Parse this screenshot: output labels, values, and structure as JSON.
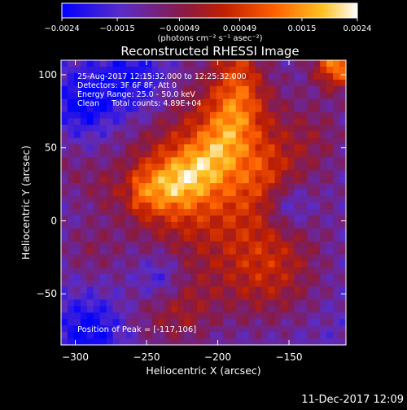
{
  "chart_data": {
    "type": "heatmap",
    "title": "Reconstructed RHESSI Image",
    "xlabel": "Heliocentric X (arcsec)",
    "ylabel": "Heliocentric Y (arcsec)",
    "xlim": [
      -310,
      -110
    ],
    "ylim": [
      -85,
      110
    ],
    "x_ticks": [
      -300,
      -250,
      -200,
      -150
    ],
    "x_tick_labels": [
      "−300",
      "−250",
      "−200",
      "−150"
    ],
    "y_ticks": [
      -50,
      0,
      50,
      100
    ],
    "y_tick_labels": [
      "−50",
      "0",
      "50",
      "100"
    ],
    "colorbar": {
      "range": [
        -0.0024,
        0.0024
      ],
      "ticks": [
        -0.0024,
        -0.0015,
        -0.00049,
        0.00049,
        0.0015,
        0.0024
      ],
      "tick_labels": [
        "−0.0024",
        "−0.0015",
        "−0.00049",
        "0.00049",
        "0.0015",
        "0.0024"
      ],
      "unit_label": "(photons cm⁻² s⁻¹ asec⁻²)",
      "colors": [
        "#0000ff",
        "#6020c0",
        "#a01818",
        "#e03000",
        "#ff8000",
        "#ffd040",
        "#ffffff"
      ]
    },
    "annotations": {
      "time": "25-Aug-2017 12:15:32.000 to 12:25:32.000",
      "detectors": "Detectors: 3F 6F 8F, Att 0",
      "energy": "Energy Range: 25.0 - 50.0 keV",
      "method": "Clean     Total counts: 4.89E+04",
      "peak": "Position of Peak = [-117,106]"
    },
    "peak": {
      "x": -117,
      "y": 106
    },
    "grid": false
  },
  "footer": {
    "datestamp": "11-Dec-2017 12:09"
  }
}
